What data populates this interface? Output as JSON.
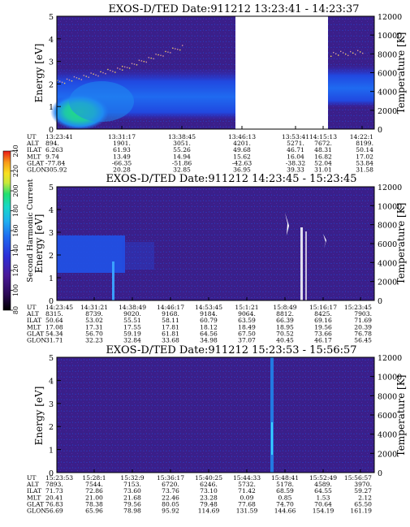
{
  "colors": {
    "background_low": "#3a1f8a",
    "band_blue": "#1a55e6",
    "band_light": "#3aa0ff",
    "green_core": "#22e07a",
    "gap": "#ffffff"
  },
  "colorbar": {
    "label": "Second Harmonic Current",
    "ticks": [
      "80",
      "100",
      "120",
      "140",
      "160",
      "180",
      "200",
      "220",
      "240"
    ],
    "colors": [
      "#000000",
      "#2b0a55",
      "#4a1a9a",
      "#2c2fd8",
      "#1f6af0",
      "#1fb0f0",
      "#18d8c8",
      "#22e070",
      "#c8e83a",
      "#f8e020",
      "#f89a18",
      "#e81818"
    ]
  },
  "panels": [
    {
      "title": "EXOS-D/TED   Date:911212  13:23:41 - 14:23:37",
      "ylabel_left": "Energy [eV]",
      "ylabel_right": "Temperature [K]",
      "left_ticks": [
        "0",
        "1",
        "2",
        "3",
        "4",
        "5"
      ],
      "right_ticks": [
        "0",
        "2000",
        "4000",
        "6000",
        "8000",
        "10000",
        "12000"
      ],
      "table_labels": [
        "UT",
        "ALT",
        "ILAT",
        "MLT",
        "GLAT",
        "GLON"
      ],
      "columns": [
        [
          "13:23:41",
          "894.",
          "6.263",
          "9.74",
          "-77.84",
          "305.92"
        ],
        [
          "13:31:17",
          "1901.",
          "61.93",
          "13.49",
          "-66.35",
          "20.28"
        ],
        [
          "13:38:45",
          "3051.",
          "55.26",
          "14.94",
          "-51.86",
          "32.85"
        ],
        [
          "13:46:13",
          "4201.",
          "49.68",
          "15.62",
          "-42.63",
          "36.95"
        ],
        [
          "13:53:41",
          "5271.",
          "46.71",
          "16.04",
          "-38.32",
          "39.33"
        ],
        [
          "14:15:13",
          "7672.",
          "48.31",
          "16.82",
          "52.04",
          "31.01"
        ],
        [
          "14:22:1",
          "8199.",
          "50.14",
          "17.02",
          "53.84",
          "31.58"
        ]
      ]
    },
    {
      "title": "EXOS-D/TED   Date:911212  14:23:45 - 15:23:45",
      "ylabel_left": "Energy [eV]",
      "ylabel_right": "Temperature [K]",
      "left_ticks": [
        "0",
        "1",
        "2",
        "3",
        "4",
        "5"
      ],
      "right_ticks": [
        "0",
        "2000",
        "4000",
        "6000",
        "8000",
        "10000",
        "12000"
      ],
      "table_labels": [
        "UT",
        "ALT",
        "ILAT",
        "MLT",
        "GLAT",
        "GLON"
      ],
      "columns": [
        [
          "14:23:45",
          "8315.",
          "50.64",
          "17.08",
          "54.34",
          "31.71"
        ],
        [
          "14:31:21",
          "8739.",
          "53.02",
          "17.31",
          "56.70",
          "32.23"
        ],
        [
          "14:38:49",
          "9020.",
          "55.51",
          "17.55",
          "59.19",
          "32.84"
        ],
        [
          "14:46:17",
          "9168.",
          "58.11",
          "17.81",
          "61.81",
          "33.68"
        ],
        [
          "14:53:45",
          "9184.",
          "60.79",
          "18.12",
          "64.56",
          "34.98"
        ],
        [
          "15:1:21",
          "9064.",
          "63.59",
          "18.49",
          "67.50",
          "37.07"
        ],
        [
          "15:8:49",
          "8812.",
          "66.39",
          "18.95",
          "70.52",
          "40.45"
        ],
        [
          "15:16:17",
          "8425.",
          "69.16",
          "19.56",
          "73.66",
          "46.17"
        ],
        [
          "15:23:45",
          "7903.",
          "71.69",
          "20.39",
          "76.78",
          "56.45"
        ]
      ]
    },
    {
      "title": "EXOS-D/TED   Date:911212  15:23:53 - 15:56:57",
      "ylabel_left": "Energy [eV]",
      "ylabel_right": "Temperature [K]",
      "left_ticks": [
        "0",
        "1",
        "2",
        "3",
        "4",
        "5"
      ],
      "right_ticks": [
        "0",
        "2000",
        "4000",
        "6000",
        "8000",
        "10000",
        "12000"
      ],
      "table_labels": [
        "UT",
        "ALT",
        "ILAT",
        "MLT",
        "GLAT",
        "GLON"
      ],
      "columns": [
        [
          "15:23:53",
          "7893.",
          "71.73",
          "20.41",
          "76.83",
          "56.69"
        ],
        [
          "15:28:1",
          "7544.",
          "72.86",
          "21.00",
          "78.38",
          "65.96"
        ],
        [
          "15:32:9",
          "7153.",
          "73.60",
          "21.68",
          "79.56",
          "78.98"
        ],
        [
          "15:36:17",
          "6720.",
          "73.76",
          "22.46",
          "80.05",
          "95.92"
        ],
        [
          "15:40:25",
          "6246.",
          "73.10",
          "23.28",
          "79.48",
          "114.69"
        ],
        [
          "15:44:33",
          "5732.",
          "71.42",
          "0.09",
          "77.68",
          "131.59"
        ],
        [
          "15:48:41",
          "5178.",
          "68.59",
          "0.85",
          "74.70",
          "144.66"
        ],
        [
          "15:52:49",
          "4589.",
          "64.55",
          "1.53",
          "70.64",
          "154.19"
        ],
        [
          "15:56:57",
          "3970.",
          "59.27",
          "2.12",
          "65.50",
          "161.19"
        ]
      ]
    }
  ],
  "chart_data": [
    {
      "type": "heatmap",
      "title": "EXOS-D/TED   Date:911212  13:23:41 - 14:23:37",
      "xlabel": "UT",
      "ylabel": "Energy [eV]",
      "y2label": "Temperature [K]",
      "x_ticks": [
        "13:23:41",
        "13:31:17",
        "13:38:45",
        "13:46:13",
        "13:53:41",
        "14:15:13",
        "14:22:1"
      ],
      "ylim": [
        0,
        5
      ],
      "y2lim": [
        0,
        12000
      ],
      "data_gap": [
        "13:58:00",
        "14:13:00"
      ],
      "features": [
        {
          "kind": "enhanced band",
          "x_range": [
            "13:23:41",
            "13:58:00"
          ],
          "energy_range": [
            0.3,
            1.6
          ]
        },
        {
          "kind": "intense low-energy region",
          "x_range": [
            "13:23:41",
            "13:34:00"
          ],
          "energy_range": [
            0.0,
            1.2
          ]
        },
        {
          "kind": "temperature trace",
          "units": "K",
          "x": [
            "13:23:41",
            "13:31:17",
            "13:38:45",
            "13:46:13",
            "13:53:41",
            "14:15:13",
            "14:22:1"
          ],
          "y": [
            5000,
            6500,
            8800,
            9000,
            7500,
            8000,
            8200
          ]
        }
      ]
    },
    {
      "type": "heatmap",
      "title": "EXOS-D/TED   Date:911212  14:23:45 - 15:23:45",
      "xlabel": "UT",
      "ylabel": "Energy [eV]",
      "y2label": "Temperature [K]",
      "x_ticks": [
        "14:23:45",
        "14:31:21",
        "14:38:49",
        "14:46:17",
        "14:53:45",
        "15:1:21",
        "15:8:49",
        "15:16:17",
        "15:23:45"
      ],
      "ylim": [
        0,
        5
      ],
      "y2lim": [
        0,
        12000
      ],
      "features": [
        {
          "kind": "enhanced band",
          "x_range": [
            "14:23:45",
            "14:41:00"
          ],
          "energy_range": [
            1.2,
            2.6
          ]
        },
        {
          "kind": "vertical spike",
          "x": "14:38:10"
        },
        {
          "kind": "vertical spike",
          "x": "15:12:30"
        },
        {
          "kind": "vertical spike",
          "x": "15:14:50"
        }
      ]
    },
    {
      "type": "heatmap",
      "title": "EXOS-D/TED   Date:911212  15:23:53 - 15:56:57",
      "xlabel": "UT",
      "ylabel": "Energy [eV]",
      "y2label": "Temperature [K]",
      "x_ticks": [
        "15:23:53",
        "15:28:1",
        "15:32:9",
        "15:36:17",
        "15:40:25",
        "15:44:33",
        "15:48:41",
        "15:52:49",
        "15:56:57"
      ],
      "ylim": [
        0,
        5
      ],
      "y2lim": [
        0,
        12000
      ],
      "features": [
        {
          "kind": "vertical spike",
          "x": "15:45:00"
        }
      ]
    }
  ]
}
